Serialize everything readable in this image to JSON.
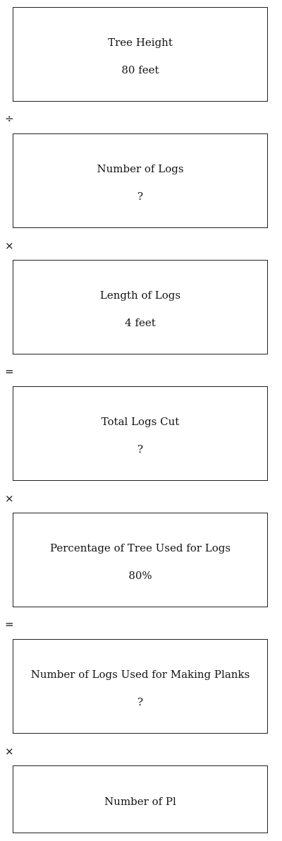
{
  "diagram": {
    "boxes": [
      {
        "label": "Tree Height",
        "value": "80 feet"
      },
      {
        "label": "Number of Logs",
        "value": "?"
      },
      {
        "label": "Length of Logs",
        "value": "4 feet"
      },
      {
        "label": "Total Logs Cut",
        "value": "?"
      },
      {
        "label": "Percentage of Tree Used for Logs",
        "value": "80%"
      },
      {
        "label": "Number of Logs Used for Making Planks",
        "value": "?"
      },
      {
        "label": "Number of Pl"
      }
    ],
    "operators": [
      "÷",
      "×",
      "=",
      "×",
      "=",
      "×"
    ]
  }
}
